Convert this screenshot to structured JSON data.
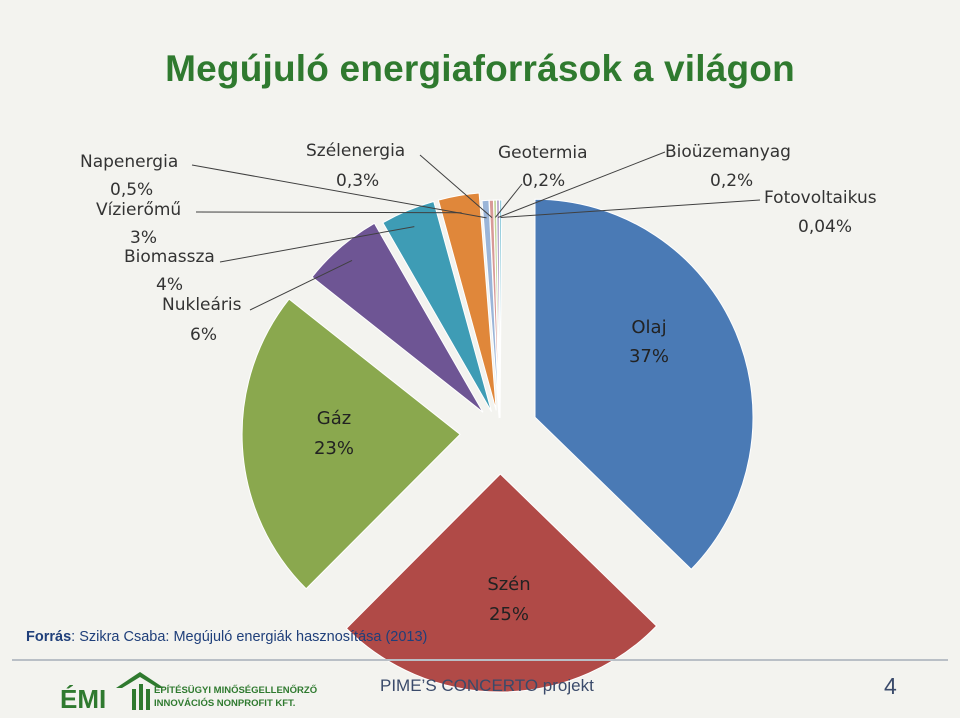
{
  "title": "Megújuló energiaforrások a világon",
  "source": {
    "label": "Forrás",
    "text": ": Szikra Csaba: Megújuló energiák hasznosítása (2013)"
  },
  "footer": {
    "org_line1": "ÉPÍTÉSÜGYI MINŐSÉGELLENŐRZŐ",
    "org_line2": "INNOVÁCIÓS NONPROFIT KFT.",
    "logo_text": "ÉMI",
    "project": "PIME’S CONCERTO projekt",
    "page_number": "4"
  },
  "colors": {
    "title": "#2f7a2f",
    "accent": "#2f7a2f"
  },
  "chart_data": {
    "type": "pie",
    "title": "",
    "slices": [
      {
        "name": "Olaj",
        "percent_label": "37%",
        "value": 37,
        "color": "#4a7ab5"
      },
      {
        "name": "Szén",
        "percent_label": "25%",
        "value": 25,
        "color": "#b04a47"
      },
      {
        "name": "Gáz",
        "percent_label": "23%",
        "value": 23,
        "color": "#8aa84e"
      },
      {
        "name": "Nukleáris",
        "percent_label": "6%",
        "value": 6,
        "color": "#6e5594"
      },
      {
        "name": "Biomassza",
        "percent_label": "4%",
        "value": 4,
        "color": "#3e9cb5"
      },
      {
        "name": "Vízierőmű",
        "percent_label": "3%",
        "value": 3,
        "color": "#e0873a"
      },
      {
        "name": "Napenergia",
        "percent_label": "0,5%",
        "value": 0.5,
        "color": "#9bb5d8"
      },
      {
        "name": "Szélenergia",
        "percent_label": "0,3%",
        "value": 0.3,
        "color": "#d89a97"
      },
      {
        "name": "Geotermia",
        "percent_label": "0,2%",
        "value": 0.2,
        "color": "#c3d69b"
      },
      {
        "name": "Bioüzemanyag",
        "percent_label": "0,2%",
        "value": 0.2,
        "color": "#b3a2c7"
      },
      {
        "name": "Fotovoltaikus",
        "percent_label": "0,04%",
        "value": 0.04,
        "color": "#93cddd"
      }
    ],
    "legend": "none"
  }
}
